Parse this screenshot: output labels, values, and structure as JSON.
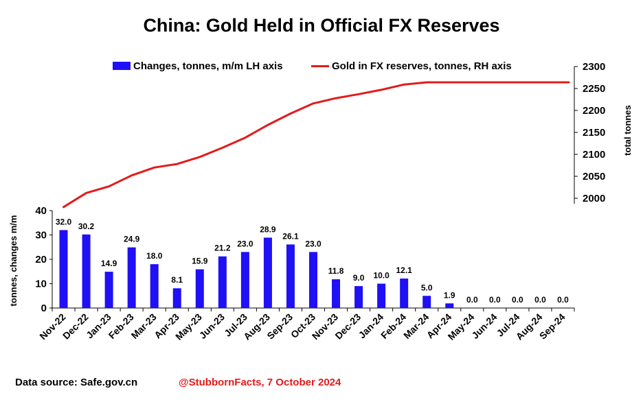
{
  "chart_data": {
    "type": "bar+line",
    "title": "China: Gold Held in Official FX Reserves",
    "categories": [
      "Nov-22",
      "Dec-22",
      "Jan-23",
      "Feb-23",
      "Mar-23",
      "Apr-23",
      "May-23",
      "Jun-23",
      "Jul-23",
      "Aug-23",
      "Sep-23",
      "Oct-23",
      "Nov-23",
      "Dec-23",
      "Jan-24",
      "Feb-24",
      "Mar-24",
      "Apr-24",
      "May-24",
      "Jun-24",
      "Jul-24",
      "Aug-24",
      "Sep-24"
    ],
    "series": [
      {
        "name": "Changes, tonnes, m/m LH axis",
        "type": "bar",
        "axis": "left",
        "color": "#1f10f5",
        "values": [
          32.0,
          30.2,
          14.9,
          24.9,
          18.0,
          8.1,
          15.9,
          21.2,
          23.0,
          28.9,
          26.1,
          23.0,
          11.8,
          9.0,
          10.0,
          12.1,
          5.0,
          1.9,
          0.0,
          0.0,
          0.0,
          0.0,
          0.0
        ],
        "labels": [
          "32.0",
          "30.2",
          "14.9",
          "24.9",
          "18.0",
          "8.1",
          "15.9",
          "21.2",
          "23.0",
          "28.9",
          "26.1",
          "23.0",
          "11.8",
          "9.0",
          "10.0",
          "12.1",
          "5.0",
          "1.9",
          "0.0",
          "0.0",
          "0.0",
          "0.0",
          "0.0"
        ]
      },
      {
        "name": "Gold in FX reserves, tonnes, RH axis",
        "type": "line",
        "axis": "right",
        "color": "#e31a1a",
        "values": [
          1980,
          2012,
          2027,
          2052,
          2070,
          2078,
          2094,
          2115,
          2138,
          2167,
          2193,
          2216,
          2228,
          2237,
          2247,
          2259,
          2264,
          2264,
          2264,
          2264,
          2264,
          2264,
          2264
        ]
      }
    ],
    "left_axis": {
      "label": "tonnes, changes m/m",
      "ylim": [
        0,
        40
      ],
      "ticks": [
        "0",
        "10",
        "20",
        "30",
        "40"
      ]
    },
    "right_axis": {
      "label": "total tonnes",
      "ylim": [
        2000,
        2300
      ],
      "ticks": [
        "2000",
        "2050",
        "2100",
        "2150",
        "2200",
        "2250",
        "2300"
      ]
    }
  },
  "footer": {
    "source": "Data source:  Safe.gov.cn",
    "credit": "@StubbornFacts, 7 October 2024"
  }
}
